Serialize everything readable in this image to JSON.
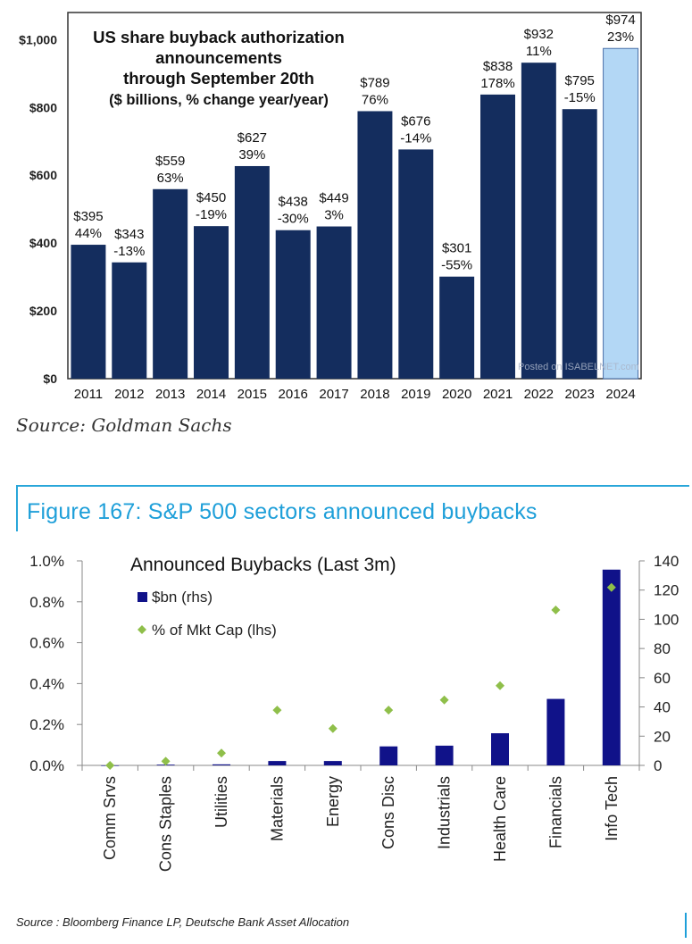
{
  "source_top": "Source: Goldman Sachs",
  "figure_title": "Figure 167: S&P 500 sectors announced buybacks",
  "source_bottom": "Source : Bloomberg Finance LP, Deutsche Bank Asset Allocation",
  "watermark": "Posted on ISABELNET.com",
  "colors": {
    "bar_dark": "#142d5e",
    "bar_light": "#b3d7f5",
    "bar_navy": "#101289",
    "diamond": "#8fbf4a",
    "accent": "#1e9fd9"
  },
  "chart_data": [
    {
      "type": "bar",
      "title": "US share buyback authorization announcements through September 20th ($ billions, % change year/year)",
      "title_lines": [
        "US share buyback authorization",
        "announcements",
        "through September 20th",
        "($ billions, % change year/year)"
      ],
      "categories": [
        "2011",
        "2012",
        "2013",
        "2014",
        "2015",
        "2016",
        "2017",
        "2018",
        "2019",
        "2020",
        "2021",
        "2022",
        "2023",
        "2024"
      ],
      "values": [
        395,
        343,
        559,
        450,
        627,
        438,
        449,
        789,
        676,
        301,
        838,
        932,
        795,
        974
      ],
      "value_labels": [
        "$395",
        "$343",
        "$559",
        "$450",
        "$627",
        "$438",
        "$449",
        "$789",
        "$676",
        "$301",
        "$838",
        "$932",
        "$795",
        "$974"
      ],
      "pct_labels": [
        "44%",
        "-13%",
        "63%",
        "-19%",
        "39%",
        "-30%",
        "3%",
        "76%",
        "-14%",
        "-55%",
        "178%",
        "11%",
        "-15%",
        "23%"
      ],
      "highlight_index": 13,
      "ylim": [
        0,
        1080
      ],
      "yticks": [
        0,
        200,
        400,
        600,
        800,
        1000
      ],
      "ytick_labels": [
        "$0",
        "$200",
        "$400",
        "$600",
        "$800",
        "$1,000"
      ],
      "xlabel": "",
      "ylabel": "",
      "grid": false
    },
    {
      "type": "bar",
      "title": "Announced Buybacks (Last 3m)",
      "categories": [
        "Comm Srvs",
        "Cons Staples",
        "Utilities",
        "Materials",
        "Energy",
        "Cons Disc",
        "Industrials",
        "Health Care",
        "Financials",
        "Info Tech"
      ],
      "series": [
        {
          "name": "$bn (rhs)",
          "type": "bar",
          "axis": "right",
          "values": [
            0,
            0.5,
            0.7,
            3,
            3,
            13,
            13.5,
            22,
            45.5,
            134
          ]
        },
        {
          "name": "% of Mkt Cap (lhs)",
          "type": "scatter",
          "marker": "diamond",
          "axis": "left",
          "values": [
            0.0,
            0.02,
            0.06,
            0.27,
            0.18,
            0.27,
            0.32,
            0.39,
            0.76,
            0.87
          ]
        }
      ],
      "ylim_left": [
        0,
        1.0
      ],
      "yticks_left_labels": [
        "0.0%",
        "0.2%",
        "0.4%",
        "0.6%",
        "0.8%",
        "1.0%"
      ],
      "ylim_right": [
        0,
        140
      ],
      "yticks_right_labels": [
        "0",
        "20",
        "40",
        "60",
        "80",
        "100",
        "120",
        "140"
      ],
      "legend_position": "top-left",
      "grid": false
    }
  ]
}
